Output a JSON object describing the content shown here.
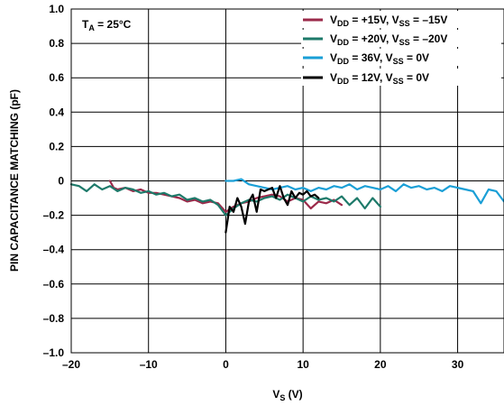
{
  "chart_data": {
    "type": "line",
    "xlabel": {
      "main": "V",
      "sub": "S",
      "rest": " (V)"
    },
    "ylabel": "PIN CAPACITANCE MATCHING (pF)",
    "xlim": [
      -20,
      36
    ],
    "ylim": [
      -1.0,
      1.0
    ],
    "x_ticks": [
      -20,
      -10,
      0,
      10,
      20,
      30
    ],
    "x_tick_labels": [
      "–20",
      "–10",
      "0",
      "10",
      "20",
      "30"
    ],
    "y_ticks": [
      1.0,
      0.8,
      0.6,
      0.4,
      0.2,
      0,
      -0.2,
      -0.4,
      -0.6,
      -0.8,
      -1.0
    ],
    "y_tick_labels": [
      "1.0",
      "0.8",
      "0.6",
      "0.4",
      "0.2",
      "0",
      "–0.2",
      "–0.4",
      "–0.6",
      "–0.8",
      "–1.0"
    ],
    "grid": true,
    "annotation": {
      "main": "T",
      "sub": "A",
      "rest": " = 25°C"
    },
    "legend_placement": "top-right",
    "series": [
      {
        "legend": [
          [
            "V",
            ""
          ],
          [
            "DD",
            "sub"
          ],
          [
            " = +15V, V",
            ""
          ],
          [
            "SS",
            "sub"
          ],
          [
            " = –15V",
            ""
          ]
        ],
        "color": "#9b2a4a",
        "x": [
          -15,
          -14.5,
          -14,
          -13,
          -12,
          -11,
          -10,
          -9,
          -8,
          -7,
          -6,
          -5,
          -4,
          -3,
          -2,
          -1,
          0,
          1,
          2,
          3,
          4,
          5,
          6,
          7,
          8,
          9,
          10,
          11,
          12,
          13,
          14,
          15
        ],
        "y": [
          0.0,
          -0.04,
          -0.05,
          -0.04,
          -0.06,
          -0.05,
          -0.07,
          -0.07,
          -0.08,
          -0.09,
          -0.1,
          -0.12,
          -0.11,
          -0.13,
          -0.12,
          -0.13,
          -0.18,
          -0.15,
          -0.13,
          -0.12,
          -0.1,
          -0.09,
          -0.08,
          -0.09,
          -0.12,
          -0.1,
          -0.11,
          -0.16,
          -0.12,
          -0.13,
          -0.11,
          -0.14
        ]
      },
      {
        "legend": [
          [
            "V",
            ""
          ],
          [
            "DD",
            "sub"
          ],
          [
            " = +20V, V",
            ""
          ],
          [
            "SS",
            "sub"
          ],
          [
            " = –20V",
            ""
          ]
        ],
        "color": "#1e7a6a",
        "x": [
          -20,
          -19,
          -18,
          -17,
          -16,
          -15,
          -14,
          -13,
          -12,
          -11,
          -10,
          -9,
          -8,
          -7,
          -6,
          -5,
          -4,
          -3,
          -2,
          -1,
          0,
          1,
          2,
          3,
          4,
          5,
          6,
          7,
          8,
          9,
          10,
          11,
          12,
          13,
          14,
          15,
          16,
          17,
          18,
          19,
          20
        ],
        "y": [
          -0.02,
          -0.03,
          -0.06,
          -0.02,
          -0.05,
          -0.03,
          -0.06,
          -0.04,
          -0.05,
          -0.07,
          -0.06,
          -0.08,
          -0.07,
          -0.09,
          -0.08,
          -0.11,
          -0.1,
          -0.12,
          -0.11,
          -0.14,
          -0.2,
          -0.16,
          -0.13,
          -0.11,
          -0.12,
          -0.1,
          -0.09,
          -0.11,
          -0.08,
          -0.1,
          -0.12,
          -0.09,
          -0.11,
          -0.1,
          -0.12,
          -0.09,
          -0.14,
          -0.1,
          -0.16,
          -0.1,
          -0.15
        ]
      },
      {
        "legend": [
          [
            "V",
            ""
          ],
          [
            "DD",
            "sub"
          ],
          [
            " = 36V, V",
            ""
          ],
          [
            "SS",
            "sub"
          ],
          [
            " = 0V",
            ""
          ]
        ],
        "color": "#1a9fd6",
        "x": [
          0,
          1,
          2,
          3,
          4,
          5,
          6,
          7,
          8,
          9,
          10,
          11,
          12,
          13,
          14,
          15,
          16,
          17,
          18,
          19,
          20,
          21,
          22,
          23,
          24,
          25,
          26,
          27,
          28,
          29,
          30,
          31,
          32,
          33,
          34,
          35,
          36
        ],
        "y": [
          0.0,
          0.0,
          0.01,
          -0.02,
          -0.03,
          -0.04,
          -0.05,
          -0.04,
          -0.03,
          -0.05,
          -0.04,
          -0.06,
          -0.04,
          -0.05,
          -0.03,
          -0.04,
          -0.02,
          -0.05,
          -0.03,
          -0.04,
          -0.05,
          -0.03,
          -0.06,
          -0.02,
          -0.04,
          -0.03,
          -0.05,
          -0.04,
          -0.06,
          -0.03,
          -0.04,
          -0.05,
          -0.06,
          -0.13,
          -0.05,
          -0.06,
          -0.12
        ]
      },
      {
        "legend": [
          [
            "V",
            ""
          ],
          [
            "DD",
            "sub"
          ],
          [
            " = 12V, V",
            ""
          ],
          [
            "SS",
            "sub"
          ],
          [
            " = 0V",
            ""
          ]
        ],
        "color": "#000000",
        "x": [
          0,
          0.5,
          1,
          1.5,
          2,
          2.5,
          3,
          3.5,
          4,
          4.5,
          5,
          5.5,
          6,
          6.5,
          7,
          7.5,
          8,
          8.5,
          9,
          9.5,
          10,
          10.5,
          11,
          11.5,
          12
        ],
        "y": [
          -0.3,
          -0.15,
          -0.18,
          -0.1,
          -0.15,
          -0.25,
          -0.12,
          -0.08,
          -0.18,
          -0.05,
          -0.06,
          -0.05,
          -0.04,
          -0.1,
          -0.03,
          -0.1,
          -0.14,
          -0.06,
          -0.1,
          -0.07,
          -0.08,
          -0.06,
          -0.09,
          -0.08,
          -0.1
        ]
      }
    ]
  }
}
